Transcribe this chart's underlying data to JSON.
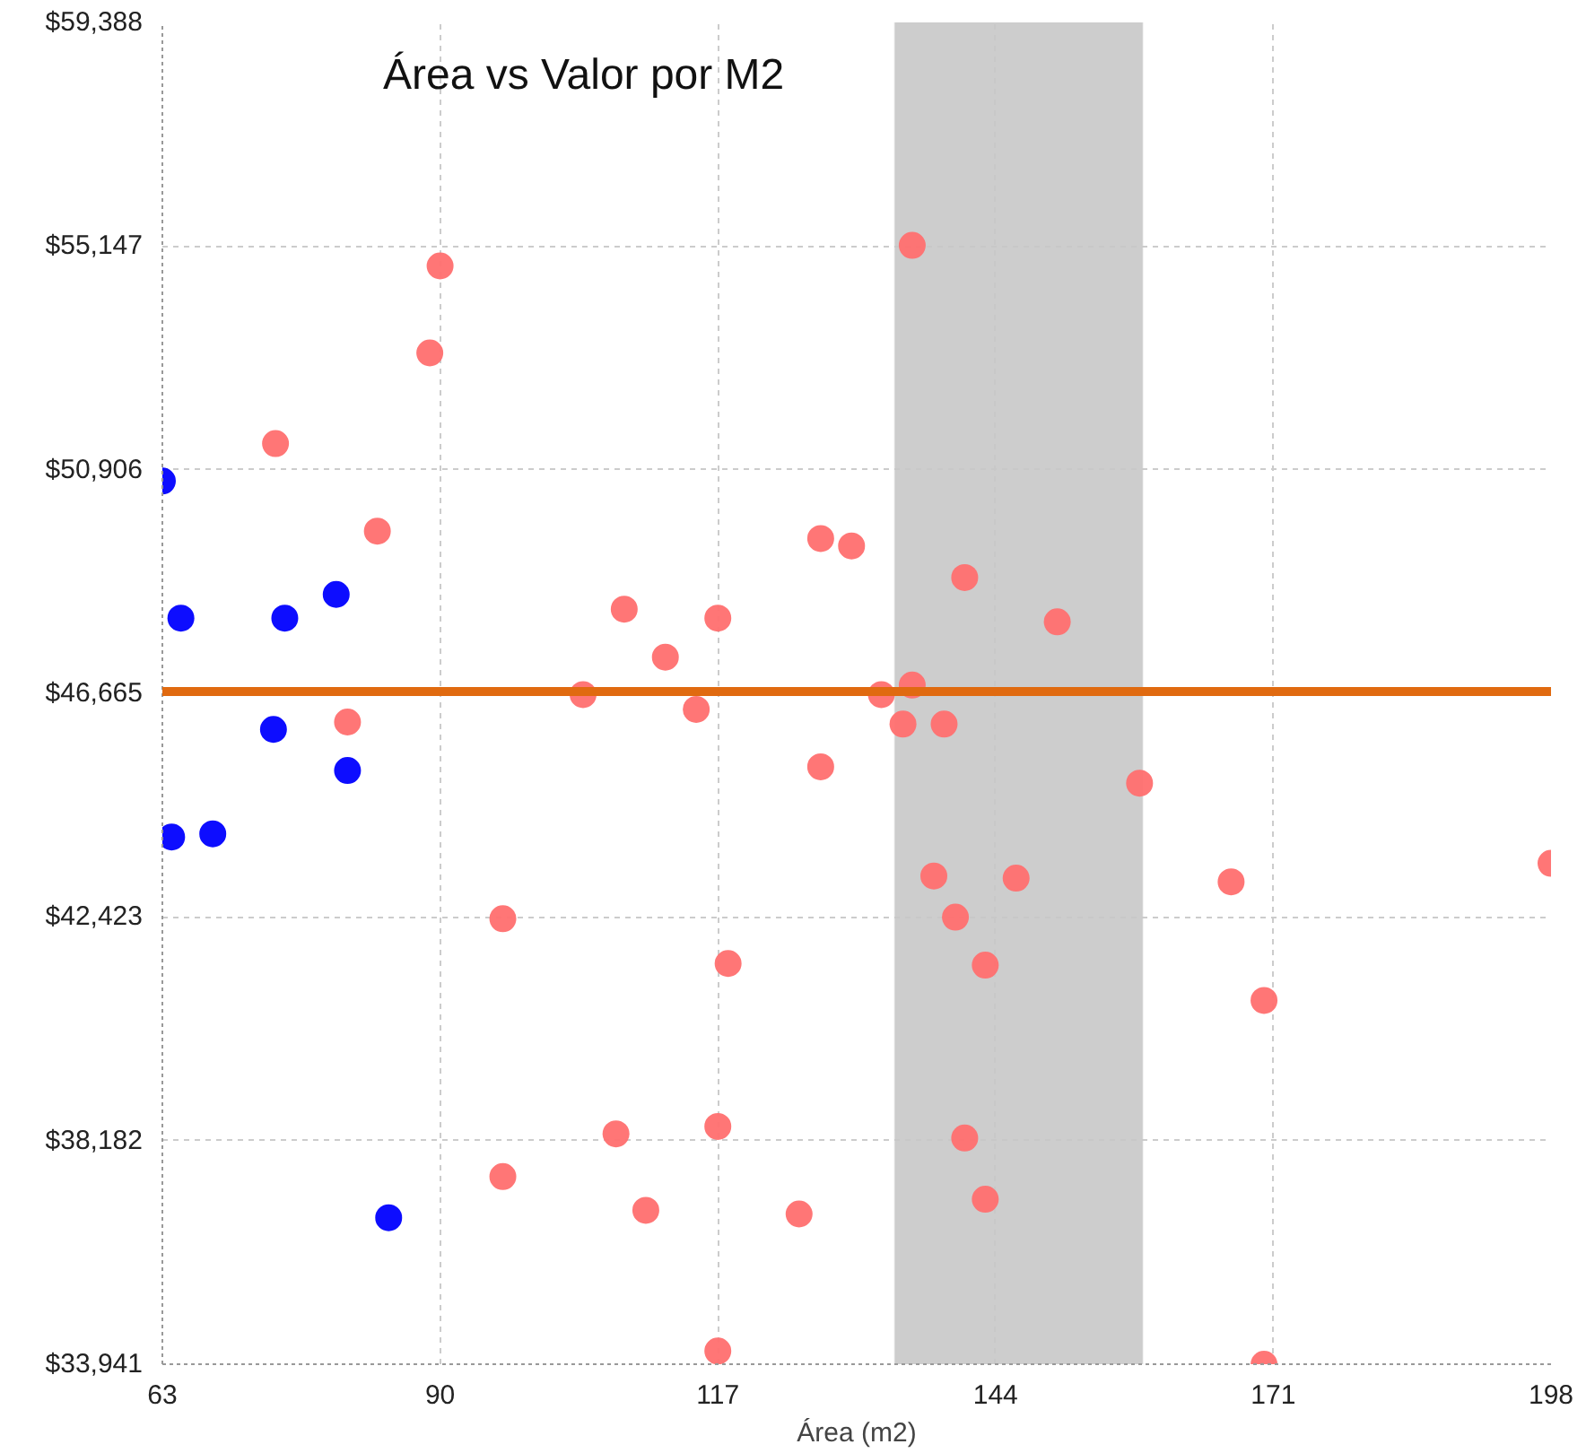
{
  "chart_data": {
    "type": "scatter",
    "title": "Área vs Valor por M2",
    "xlabel": "Área (m2)",
    "xlim": [
      63,
      198
    ],
    "xticks": [
      63,
      90,
      117,
      144,
      171,
      198
    ],
    "ylim": [
      33941,
      59388
    ],
    "yticks": [
      {
        "value": 33941,
        "label": "$33,941"
      },
      {
        "value": 38182,
        "label": "$38,182"
      },
      {
        "value": 42423,
        "label": "$42,423"
      },
      {
        "value": 46665,
        "label": "$46,665"
      },
      {
        "value": 50906,
        "label": "$50,906"
      },
      {
        "value": 55147,
        "label": "$55,147"
      },
      {
        "value": 59388,
        "label": "$59,388"
      }
    ],
    "grid": true,
    "marker": "circle",
    "series": [
      {
        "color": "#0000ff",
        "x": [
          63,
          64.8,
          74.9,
          79.9,
          73.8,
          81.0,
          63.9,
          67.9,
          85.0
        ],
        "values": [
          50690,
          48090,
          48090,
          48540,
          45980,
          45200,
          43940,
          44000,
          36720
        ]
      },
      {
        "color": "#ff6f6f",
        "x": [
          90.0,
          89.0,
          74.0,
          83.9,
          81.0,
          107.9,
          111.9,
          117.0,
          103.9,
          114.9,
          127.0,
          130.0,
          135.9,
          141.0,
          150.0,
          132.9,
          135.9,
          135.0,
          139.0,
          127.0,
          158.0,
          138.0,
          146.0,
          140.1,
          143.0,
          166.9,
          198.0,
          170.1,
          96.1,
          118.0,
          107.1,
          117.0,
          141.0,
          96.1,
          110.0,
          124.9,
          143.0,
          117.0,
          170.1
        ],
        "values": [
          54770,
          53120,
          51400,
          49740,
          46120,
          48260,
          47350,
          48090,
          46640,
          46360,
          49600,
          49460,
          55160,
          48860,
          48020,
          46640,
          46820,
          46080,
          46080,
          45270,
          44960,
          43200,
          43160,
          42420,
          41510,
          43090,
          43440,
          40840,
          42390,
          41540,
          38310,
          38450,
          38230,
          37500,
          36860,
          36790,
          37070,
          34190,
          33941
        ]
      }
    ],
    "ref_lines": [
      {
        "axis": "y",
        "value": 46700,
        "color": "#e06a10"
      }
    ],
    "bands": [
      {
        "axis": "x",
        "from": 134.2,
        "to": 158.3,
        "color": "#c8c8c8"
      }
    ]
  }
}
